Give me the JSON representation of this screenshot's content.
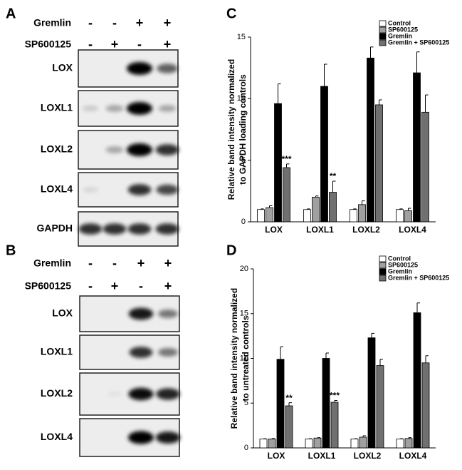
{
  "blots": [
    {
      "label": "A",
      "conditions": [
        {
          "name": "Gremlin",
          "marks": [
            "-",
            "-",
            "+",
            "+"
          ]
        },
        {
          "name": "SP600125",
          "marks": [
            "-",
            "+",
            "-",
            "+"
          ]
        }
      ],
      "bands": [
        "LOX",
        "LOXL1",
        "LOXL2",
        "LOXL4",
        "GAPDH"
      ]
    },
    {
      "label": "B",
      "conditions": [
        {
          "name": "Gremlin",
          "marks": [
            "-",
            "-",
            "+",
            "+"
          ]
        },
        {
          "name": "SP600125",
          "marks": [
            "-",
            "+",
            "-",
            "+"
          ]
        }
      ],
      "bands": [
        "LOX",
        "LOXL1",
        "LOXL2",
        "LOXL4"
      ]
    }
  ],
  "chart_data": [
    {
      "type": "bar",
      "label": "C",
      "ylabel": [
        "Relative band intensity normalized",
        "to GAPDH loading controls"
      ],
      "categories": [
        "LOX",
        "LOXL1",
        "LOXL2",
        "LOXL4"
      ],
      "ylim": [
        0,
        15
      ],
      "yticks": [
        0,
        5,
        10,
        15
      ],
      "grid": false,
      "legend": "top-right",
      "series": [
        {
          "name": "Control",
          "color": "#ffffff",
          "values": [
            1.0,
            1.0,
            1.0,
            1.0
          ],
          "errors": [
            0.05,
            0.05,
            0.05,
            0.05
          ]
        },
        {
          "name": "SP600125",
          "color": "#a0a0a0",
          "values": [
            1.15,
            2.0,
            1.4,
            0.9
          ],
          "errors": [
            0.15,
            0.1,
            0.3,
            0.2
          ]
        },
        {
          "name": "Gremlin",
          "color": "#000000",
          "values": [
            9.6,
            11.0,
            13.3,
            12.1
          ],
          "errors": [
            1.6,
            1.8,
            0.9,
            1.7
          ]
        },
        {
          "name": "Gremlin + SP600125",
          "color": "#707070",
          "values": [
            4.4,
            2.4,
            9.5,
            8.9
          ],
          "errors": [
            0.3,
            0.9,
            0.4,
            1.4
          ],
          "significance": [
            "***",
            "**",
            null,
            null
          ]
        }
      ]
    },
    {
      "type": "bar",
      "label": "D",
      "ylabel": [
        "Relative band intensity normalized",
        "to untreated controls"
      ],
      "categories": [
        "LOX",
        "LOXL1",
        "LOXL2",
        "LOXL4"
      ],
      "ylim": [
        0,
        20
      ],
      "yticks": [
        0,
        5,
        10,
        15,
        20
      ],
      "grid": false,
      "legend": "top-right",
      "series": [
        {
          "name": "Control",
          "color": "#ffffff",
          "values": [
            1.0,
            1.0,
            1.0,
            1.0
          ],
          "errors": [
            0.03,
            0.03,
            0.03,
            0.03
          ]
        },
        {
          "name": "SP600125",
          "color": "#a0a0a0",
          "values": [
            1.0,
            1.1,
            1.2,
            1.05
          ],
          "errors": [
            0.05,
            0.05,
            0.15,
            0.1
          ]
        },
        {
          "name": "Gremlin",
          "color": "#000000",
          "values": [
            9.9,
            10.0,
            12.3,
            15.1
          ],
          "errors": [
            1.4,
            0.6,
            0.5,
            1.1
          ]
        },
        {
          "name": "Gremlin + SP600125",
          "color": "#707070",
          "values": [
            4.7,
            5.1,
            9.2,
            9.5
          ],
          "errors": [
            0.35,
            0.2,
            0.7,
            0.8
          ],
          "significance": [
            "**",
            "***",
            null,
            null
          ]
        }
      ]
    }
  ]
}
